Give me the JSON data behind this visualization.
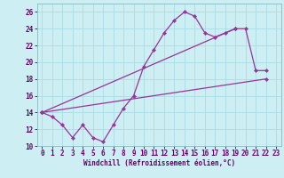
{
  "xlabel": "Windchill (Refroidissement éolien,°C)",
  "background_color": "#cdeef2",
  "line_color": "#993399",
  "ylim": [
    10,
    27
  ],
  "xlim": [
    -0.5,
    23.5
  ],
  "yticks": [
    10,
    12,
    14,
    16,
    18,
    20,
    22,
    24,
    26
  ],
  "xticks": [
    0,
    1,
    2,
    3,
    4,
    5,
    6,
    7,
    8,
    9,
    10,
    11,
    12,
    13,
    14,
    15,
    16,
    17,
    18,
    19,
    20,
    21,
    22,
    23
  ],
  "series1_y": [
    14,
    13.5,
    12.5,
    11,
    12.5,
    11,
    10.5,
    12.5,
    14.5,
    16,
    19.5,
    21.5,
    23.5,
    25,
    26,
    25.5,
    23.5,
    23,
    23.5,
    24,
    24,
    19,
    19
  ],
  "series2_x": [
    0,
    22
  ],
  "series2_y": [
    14,
    18
  ],
  "series3_x": [
    0,
    19
  ],
  "series3_y": [
    14,
    24
  ],
  "grid_color": "#aadde4",
  "tick_fontsize": 5.5,
  "xlabel_fontsize": 5.5
}
